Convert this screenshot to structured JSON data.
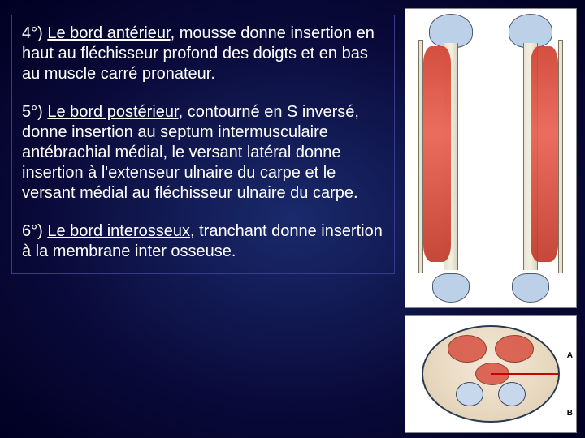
{
  "slide": {
    "background_gradient": [
      "#1a2a6c",
      "#0a0a3a",
      "#000022"
    ],
    "text_color": "#ffffff",
    "font_family": "Arial",
    "font_size_pt": 20,
    "textbox_border_color": "#3a3a8a",
    "paragraphs": [
      {
        "label_prefix": "4°) ",
        "label_underlined": "Le bord antérieur",
        "body": ", mousse donne insertion en haut au fléchisseur profond des doigts et en bas au muscle carré pronateur."
      },
      {
        "label_prefix": "5°) ",
        "label_underlined": "Le bord postérieur",
        "body": ", contourné en S inversé, donne insertion au septum intermusculaire antébrachial médial, le versant latéral donne insertion à l'extenseur ulnaire du carpe et le versant médial au fléchisseur ulnaire du carpe."
      },
      {
        "label_prefix": "6°) ",
        "label_underlined": "Le bord interosseux",
        "body": ", tranchant donne insertion à la membrane inter osseuse."
      }
    ]
  },
  "diagrams": {
    "panel_top": {
      "type": "anatomical-illustration",
      "description": "two-forearm-bones-anterior-posterior",
      "background_color": "#ffffff",
      "bone_color": "#e8e4d4",
      "bone_outline": "#7a7260",
      "epiphysis_color": "#bcd0e8",
      "muscle_color": "#d04030",
      "columns": 2
    },
    "panel_bottom": {
      "type": "anatomical-cross-section",
      "description": "forearm-transverse-section",
      "background_color": "#ffffff",
      "outline_color": "#2a3a50",
      "tissue_fill": "#e8d8c0",
      "bone_fill": "#c8d8ec",
      "muscle_fill": "#d85040",
      "pointer_color": "#cc0000",
      "labels": {
        "A": "A",
        "B": "B"
      }
    }
  }
}
